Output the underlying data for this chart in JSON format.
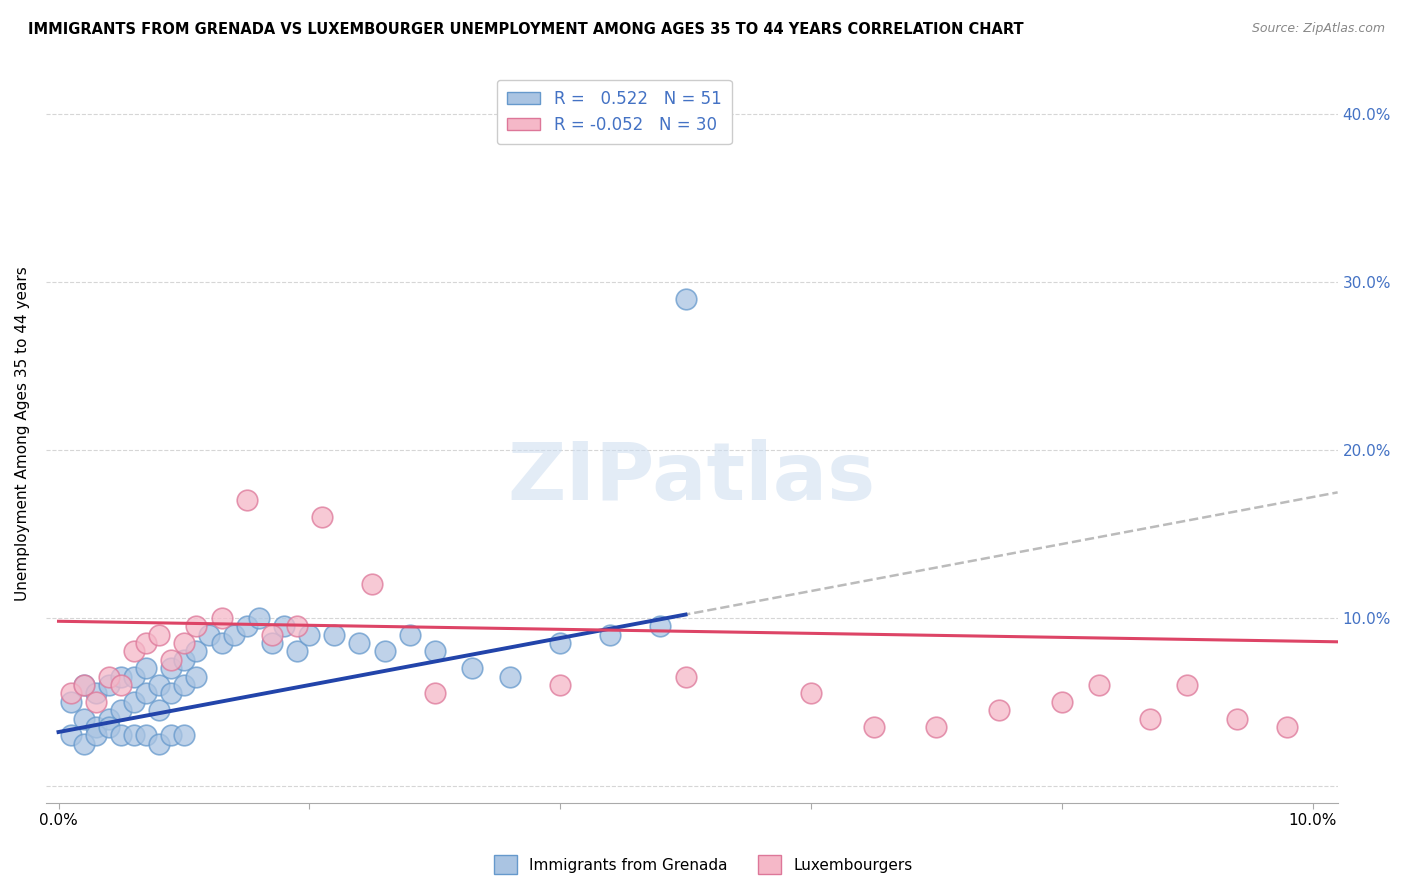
{
  "title": "IMMIGRANTS FROM GRENADA VS LUXEMBOURGER UNEMPLOYMENT AMONG AGES 35 TO 44 YEARS CORRELATION CHART",
  "source": "Source: ZipAtlas.com",
  "ylabel": "Unemployment Among Ages 35 to 44 years",
  "xlim": [
    -0.001,
    0.102
  ],
  "ylim": [
    -0.01,
    0.43
  ],
  "grenada_R": 0.522,
  "grenada_N": 51,
  "luxembourger_R": -0.052,
  "luxembourger_N": 30,
  "grenada_color": "#aac4e2",
  "grenada_edge_color": "#6699cc",
  "luxembourger_color": "#f5b8c8",
  "luxembourger_edge_color": "#dd7799",
  "grenada_line_color": "#2244aa",
  "luxembourger_line_color": "#dd4466",
  "dashed_line_color": "#bbbbbb",
  "watermark_text": "ZIPatlas",
  "grenada_x": [
    0.001,
    0.002,
    0.002,
    0.003,
    0.003,
    0.004,
    0.004,
    0.005,
    0.005,
    0.006,
    0.006,
    0.007,
    0.007,
    0.008,
    0.008,
    0.009,
    0.009,
    0.01,
    0.01,
    0.011,
    0.011,
    0.012,
    0.013,
    0.014,
    0.015,
    0.016,
    0.017,
    0.018,
    0.019,
    0.02,
    0.022,
    0.024,
    0.026,
    0.028,
    0.03,
    0.033,
    0.036,
    0.04,
    0.044,
    0.048,
    0.001,
    0.002,
    0.003,
    0.004,
    0.005,
    0.006,
    0.007,
    0.008,
    0.009,
    0.01,
    0.05
  ],
  "grenada_y": [
    0.05,
    0.06,
    0.04,
    0.055,
    0.035,
    0.06,
    0.04,
    0.065,
    0.045,
    0.065,
    0.05,
    0.07,
    0.055,
    0.06,
    0.045,
    0.07,
    0.055,
    0.075,
    0.06,
    0.08,
    0.065,
    0.09,
    0.085,
    0.09,
    0.095,
    0.1,
    0.085,
    0.095,
    0.08,
    0.09,
    0.09,
    0.085,
    0.08,
    0.09,
    0.08,
    0.07,
    0.065,
    0.085,
    0.09,
    0.095,
    0.03,
    0.025,
    0.03,
    0.035,
    0.03,
    0.03,
    0.03,
    0.025,
    0.03,
    0.03,
    0.29
  ],
  "luxembourger_x": [
    0.001,
    0.002,
    0.003,
    0.004,
    0.005,
    0.006,
    0.007,
    0.008,
    0.009,
    0.01,
    0.011,
    0.013,
    0.015,
    0.017,
    0.019,
    0.021,
    0.025,
    0.03,
    0.04,
    0.05,
    0.06,
    0.065,
    0.07,
    0.075,
    0.08,
    0.083,
    0.087,
    0.09,
    0.094,
    0.098
  ],
  "luxembourger_y": [
    0.055,
    0.06,
    0.05,
    0.065,
    0.06,
    0.08,
    0.085,
    0.09,
    0.075,
    0.085,
    0.095,
    0.1,
    0.17,
    0.09,
    0.095,
    0.16,
    0.12,
    0.055,
    0.06,
    0.065,
    0.055,
    0.035,
    0.035,
    0.045,
    0.05,
    0.06,
    0.04,
    0.06,
    0.04,
    0.035
  ],
  "grenada_line_x": [
    0.0,
    0.05
  ],
  "grenada_line_y_intercept": 0.032,
  "grenada_line_slope": 1.4,
  "dashed_line_x": [
    0.035,
    0.102
  ],
  "dashed_line_y_start": 0.081,
  "dashed_line_slope": 1.4,
  "luxembourger_line_x": [
    0.0,
    0.102
  ],
  "luxembourger_line_y_intercept": 0.098,
  "luxembourger_line_slope": -0.12
}
